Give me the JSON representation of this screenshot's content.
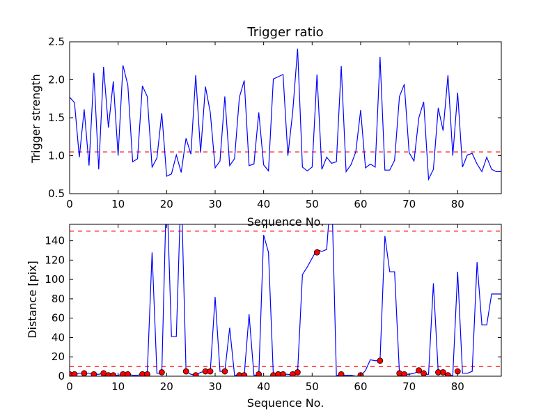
{
  "chart_data": [
    {
      "type": "line",
      "title": "Trigger ratio",
      "xlabel": "Sequence No.",
      "ylabel": "Trigger strength",
      "xlim": [
        0,
        89
      ],
      "ylim": [
        0.5,
        2.5
      ],
      "xticks": [
        "0",
        "10",
        "20",
        "30",
        "40",
        "50",
        "60",
        "70",
        "80"
      ],
      "yticks": [
        "0.5",
        "1.0",
        "1.5",
        "2.0",
        "2.5"
      ],
      "threshold": 1.05,
      "colors": {
        "line": "#0000ff",
        "threshold": "#ff0000"
      },
      "series": [
        {
          "values": [
            1.77,
            1.7,
            0.98,
            1.61,
            0.87,
            2.09,
            0.82,
            2.17,
            1.37,
            1.98,
            1.0,
            2.19,
            1.93,
            0.92,
            0.96,
            1.92,
            1.78,
            0.85,
            0.97,
            1.56,
            0.73,
            0.76,
            1.01,
            0.78,
            1.23,
            1.02,
            2.06,
            1.04,
            1.91,
            1.57,
            0.84,
            0.93,
            1.78,
            0.87,
            0.96,
            1.77,
            1.99,
            0.87,
            0.89,
            1.57,
            0.88,
            0.8,
            2.01,
            2.04,
            2.07,
            1.0,
            1.58,
            2.41,
            0.85,
            0.8,
            0.85,
            2.07,
            0.82,
            0.98,
            0.9,
            0.92,
            2.18,
            0.79,
            0.88,
            1.05,
            1.6,
            0.84,
            0.89,
            0.85,
            2.3,
            0.81,
            0.81,
            0.94,
            1.78,
            1.94,
            1.04,
            0.93,
            1.5,
            1.71,
            0.69,
            0.82,
            1.63,
            1.33,
            2.06,
            1.0,
            1.83,
            0.85,
            1.01,
            1.03,
            0.89,
            0.79,
            0.98,
            0.82,
            0.79,
            0.79
          ]
        }
      ]
    },
    {
      "type": "line",
      "title": "",
      "xlabel": "Sequence No.",
      "ylabel": "Distance [pix]",
      "xlim": [
        0,
        89
      ],
      "ylim": [
        0,
        157
      ],
      "xticks": [
        "0",
        "10",
        "20",
        "30",
        "40",
        "50",
        "60",
        "70",
        "80"
      ],
      "yticks": [
        "0",
        "20",
        "40",
        "60",
        "80",
        "100",
        "120",
        "140"
      ],
      "thresholds": [
        150,
        10
      ],
      "colors": {
        "line": "#0000ff",
        "threshold": "#ff0000",
        "marker": "#ff0000"
      },
      "series": [
        {
          "values": [
            2,
            2,
            3,
            3,
            3,
            2,
            2,
            3,
            1,
            1,
            1,
            2,
            2,
            1,
            1,
            2,
            2,
            128,
            3,
            3,
            200,
            41,
            41,
            200,
            5,
            2,
            1,
            4,
            5,
            5,
            82,
            5,
            5,
            50,
            1,
            1,
            1,
            64,
            1,
            1,
            146,
            128,
            1,
            1,
            2,
            2,
            1,
            4,
            105,
            113,
            122,
            131,
            129,
            131,
            200,
            1,
            1,
            1,
            1,
            0,
            0,
            6,
            17,
            16,
            16,
            145,
            108,
            108,
            3,
            2,
            2,
            3,
            5,
            2,
            2,
            96,
            4,
            3,
            1,
            1,
            108,
            3,
            3,
            5,
            118,
            53,
            53,
            85,
            85,
            85
          ]
        },
        {
          "name": "",
          "marker": "circle",
          "x": [
            0,
            1,
            3,
            5,
            7,
            8,
            9,
            11,
            12,
            15,
            16,
            19,
            24,
            26,
            28,
            29,
            32,
            35,
            36,
            39,
            42,
            43,
            44,
            46,
            47,
            51,
            56,
            60,
            64,
            68,
            69,
            72,
            73,
            76,
            77,
            78,
            80
          ],
          "y": [
            2,
            2,
            3,
            2,
            3,
            1,
            1,
            2,
            2,
            2,
            2,
            4,
            5,
            1,
            5,
            5,
            5,
            1,
            1,
            2,
            1,
            2,
            2,
            2,
            4,
            128,
            2,
            1,
            16,
            3,
            2,
            6,
            3,
            4,
            4,
            1,
            5
          ]
        }
      ]
    }
  ]
}
